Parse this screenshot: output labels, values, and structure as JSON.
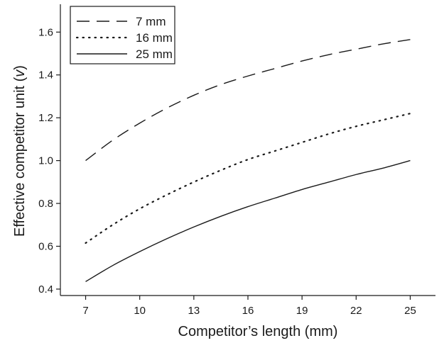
{
  "chart_data": {
    "type": "line",
    "title": "",
    "xlabel": "Competitor’s length (mm)",
    "ylabel": "Effective competitor unit (",
    "ylabel_var": "v",
    "ylabel_close": ")",
    "xlim": [
      5.6,
      26.4
    ],
    "ylim": [
      0.37,
      1.73
    ],
    "xticks": [
      7,
      10,
      13,
      16,
      19,
      22,
      25
    ],
    "xtick_labels": [
      "7",
      "10",
      "13",
      "16",
      "19",
      "22",
      "25"
    ],
    "yticks": [
      0.4,
      0.6,
      0.8,
      1.0,
      1.2,
      1.4,
      1.6
    ],
    "ytick_labels": [
      "0.4",
      "0.6",
      "0.8",
      "1.0",
      "1.2",
      "1.4",
      "1.6"
    ],
    "grid": false,
    "legend_position": "top-left",
    "series": [
      {
        "name": "7 mm",
        "style": "dashed",
        "color": "#1a1a1a",
        "x": [
          7,
          8.5,
          10,
          11.5,
          13,
          14.5,
          16,
          17.5,
          19,
          20.5,
          22,
          23.5,
          25
        ],
        "y": [
          1.0,
          1.095,
          1.175,
          1.245,
          1.305,
          1.355,
          1.395,
          1.43,
          1.465,
          1.495,
          1.52,
          1.545,
          1.565
        ]
      },
      {
        "name": "16 mm",
        "style": "dotted",
        "color": "#1a1a1a",
        "x": [
          7,
          8.5,
          10,
          11.5,
          13,
          14.5,
          16,
          17.5,
          19,
          20.5,
          22,
          23.5,
          25
        ],
        "y": [
          0.615,
          0.7,
          0.775,
          0.84,
          0.9,
          0.955,
          1.005,
          1.045,
          1.085,
          1.125,
          1.16,
          1.19,
          1.22
        ]
      },
      {
        "name": "25 mm",
        "style": "solid",
        "color": "#1a1a1a",
        "x": [
          7,
          8.5,
          10,
          11.5,
          13,
          14.5,
          16,
          17.5,
          19,
          20.5,
          22,
          23.5,
          25
        ],
        "y": [
          0.435,
          0.51,
          0.575,
          0.635,
          0.69,
          0.74,
          0.785,
          0.825,
          0.865,
          0.9,
          0.935,
          0.965,
          1.0
        ]
      }
    ]
  }
}
